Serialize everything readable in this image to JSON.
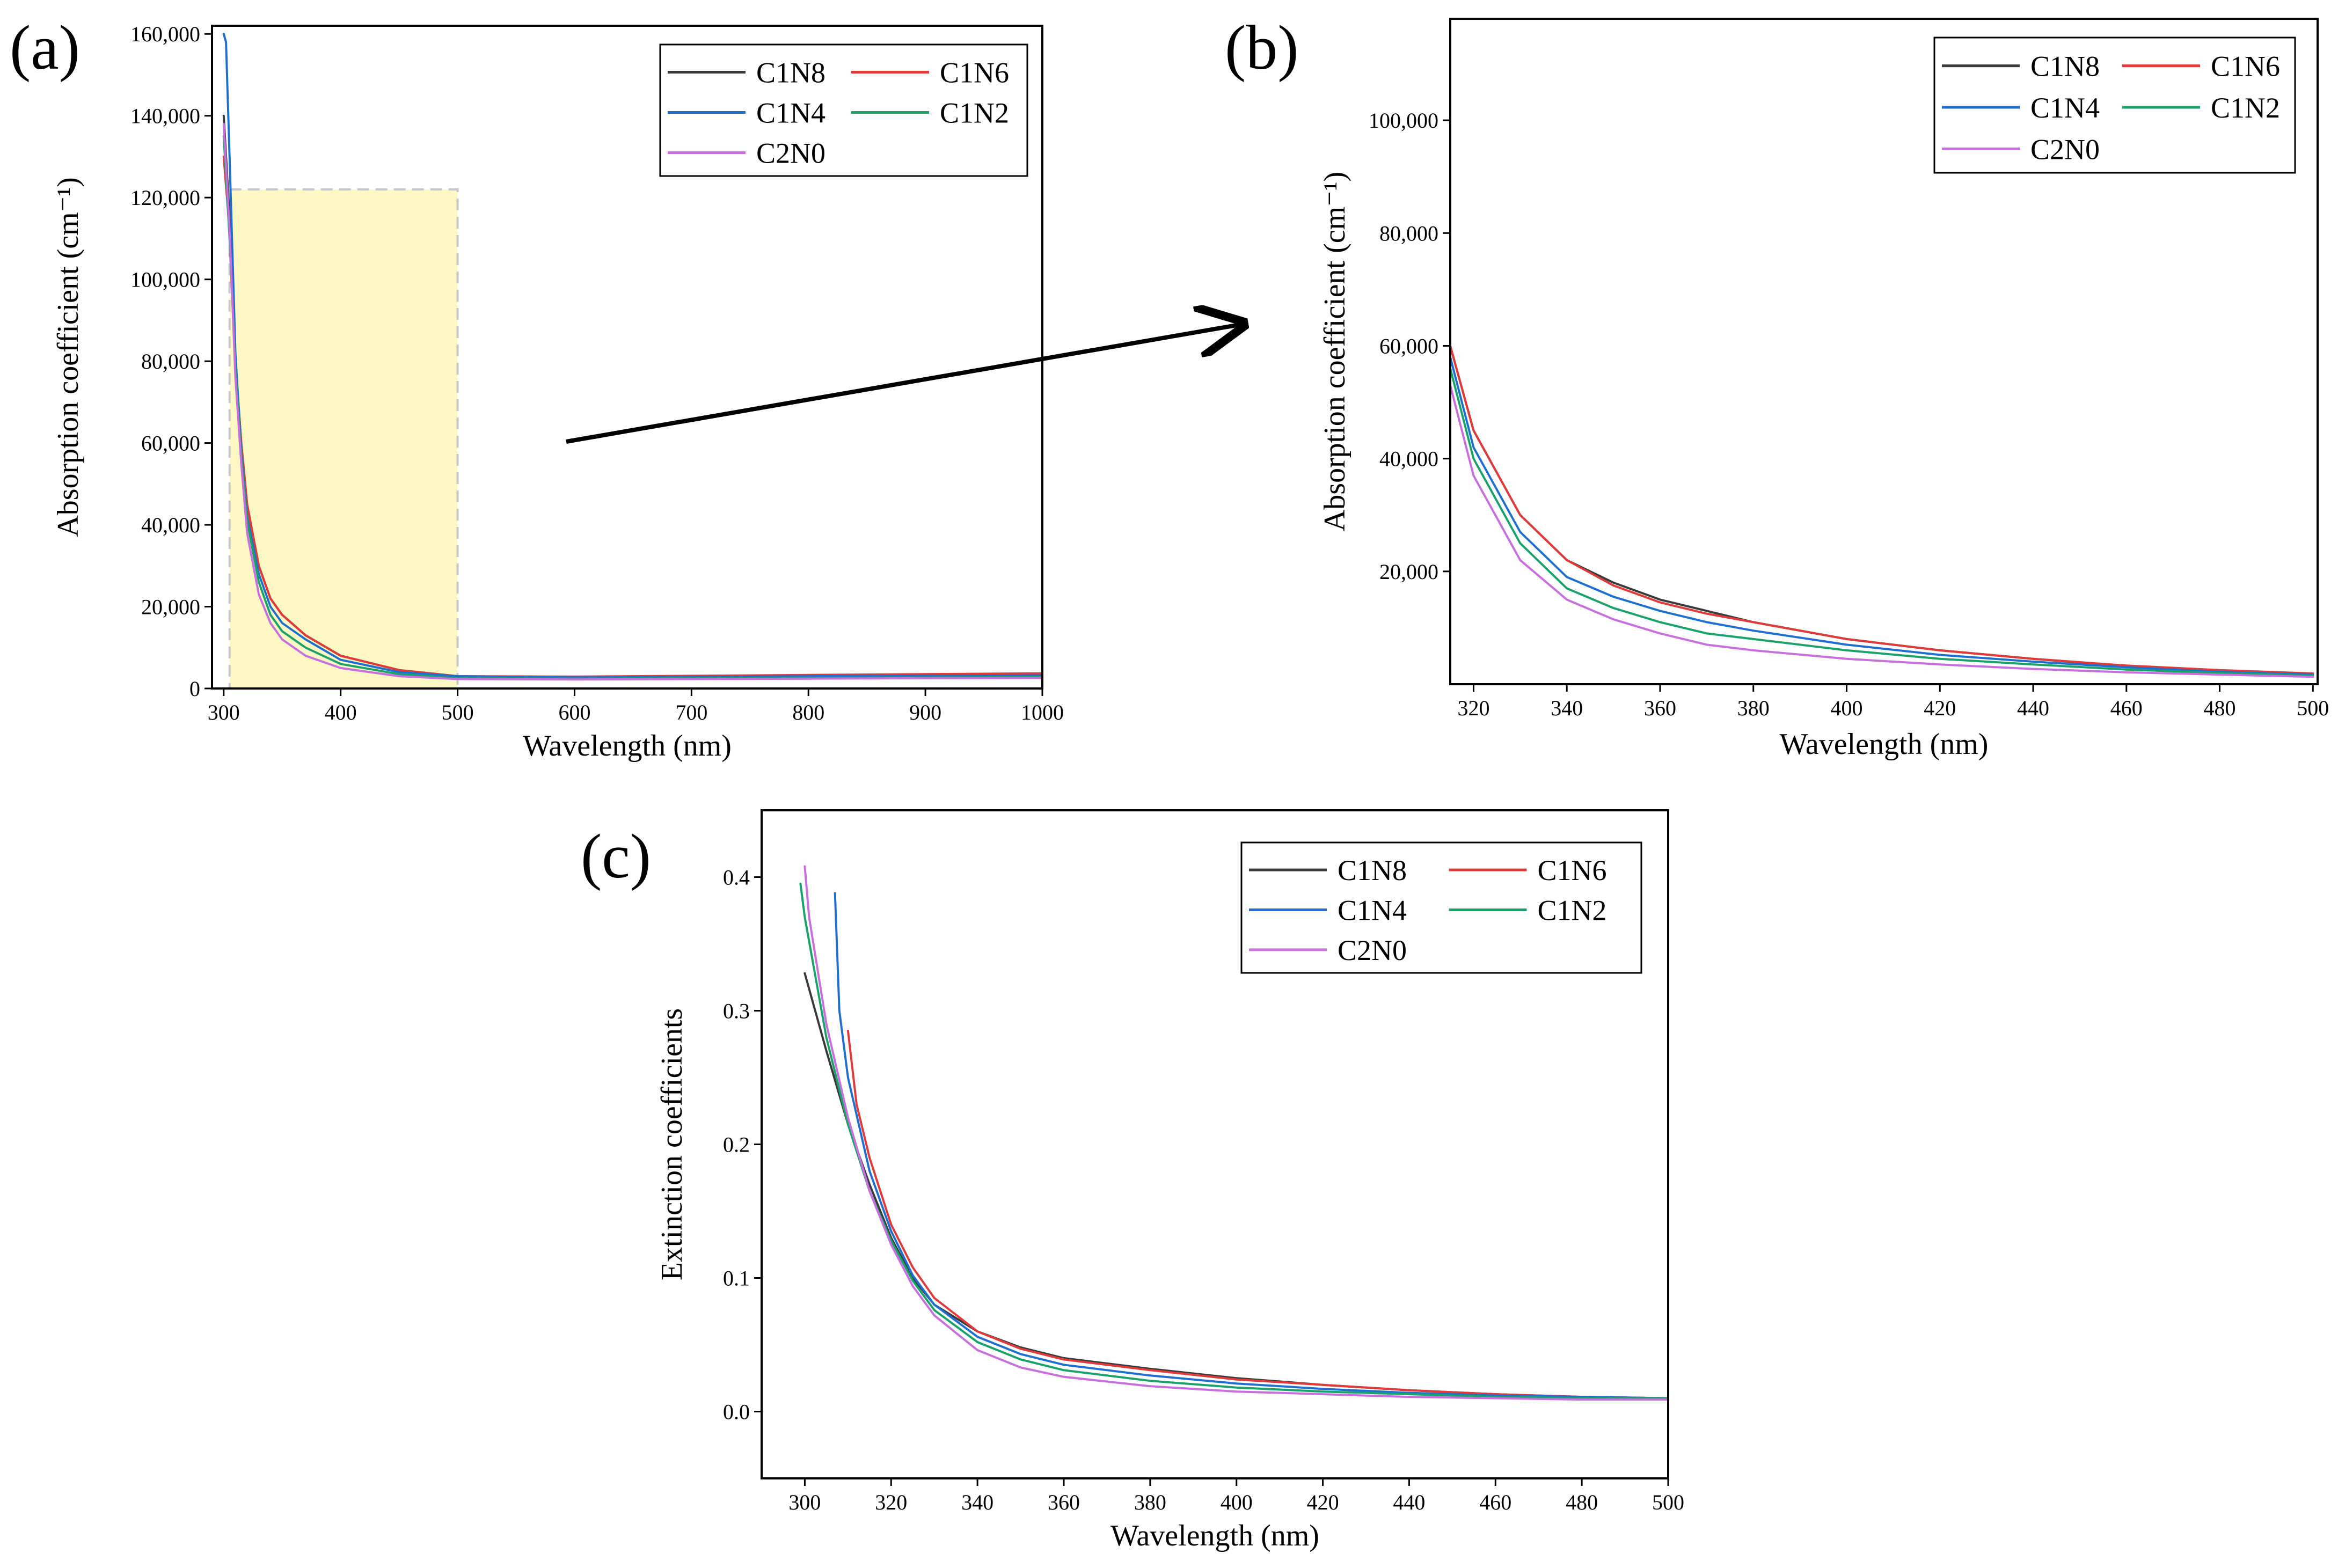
{
  "colors": {
    "C1N8": "#3a3a3a",
    "C1N6": "#e03a3a",
    "C1N4": "#1f6fd1",
    "C1N2": "#1aa26b",
    "C2N0": "#c86fe0",
    "highlight_fill": "#fdf7b8",
    "highlight_stroke": "#c8c8c8"
  },
  "chart_data": [
    {
      "id": "a",
      "panel_label": "(a)",
      "type": "line",
      "title": "",
      "xlabel": "Wavelength (nm)",
      "ylabel": "Absorption coefficient (cm⁻¹)",
      "xlim": [
        290,
        1000
      ],
      "ylim": [
        0,
        162000
      ],
      "xticks": [
        300,
        400,
        500,
        600,
        700,
        800,
        900,
        1000
      ],
      "xtick_labels": [
        "300",
        "400",
        "500",
        "600",
        "700",
        "800",
        "900",
        "1000"
      ],
      "yticks": [
        0,
        20000,
        40000,
        60000,
        80000,
        100000,
        120000,
        140000,
        160000
      ],
      "ytick_labels": [
        "0",
        "20,000",
        "40,000",
        "60,000",
        "80,000",
        "100,000",
        "120,000",
        "140,000",
        "160,000"
      ],
      "highlight": {
        "x": [
          305,
          500
        ],
        "y": [
          0,
          122000
        ],
        "annotation": "zoom region shown in (b)"
      },
      "legend": {
        "position": "top-right",
        "entries": [
          "C1N8",
          "C1N6",
          "C1N4",
          "C1N2",
          "C2N0"
        ]
      },
      "series": [
        {
          "name": "C1N8",
          "x": [
            300,
            305,
            310,
            315,
            320,
            330,
            340,
            350,
            370,
            400,
            450,
            500,
            600,
            700,
            800,
            900,
            1000
          ],
          "y": [
            140000,
            115000,
            80000,
            60000,
            45000,
            30000,
            22000,
            18000,
            13000,
            8000,
            4500,
            3000,
            2800,
            2800,
            3000,
            3200,
            3400
          ]
        },
        {
          "name": "C1N6",
          "x": [
            300,
            305,
            310,
            315,
            320,
            330,
            340,
            350,
            370,
            400,
            450,
            500,
            600,
            700,
            800,
            900,
            1000
          ],
          "y": [
            130000,
            112000,
            80000,
            60000,
            45000,
            30000,
            22000,
            18000,
            13000,
            8000,
            4500,
            3000,
            2900,
            3100,
            3300,
            3500,
            3700
          ]
        },
        {
          "name": "C1N4",
          "x": [
            300,
            302,
            305,
            310,
            315,
            320,
            330,
            340,
            350,
            370,
            400,
            450,
            500,
            600,
            700,
            800,
            900,
            1000
          ],
          "y": [
            160000,
            158000,
            130000,
            82000,
            58000,
            42000,
            28000,
            20000,
            16000,
            12000,
            7000,
            4000,
            3000,
            2700,
            2800,
            3000,
            3100,
            3200
          ]
        },
        {
          "name": "C1N2",
          "x": [
            300,
            305,
            310,
            315,
            320,
            330,
            340,
            350,
            370,
            400,
            450,
            500,
            600,
            700,
            800,
            900,
            1000
          ],
          "y": [
            135000,
            110000,
            78000,
            57000,
            41000,
            26000,
            18000,
            14000,
            10000,
            6000,
            3500,
            2500,
            2400,
            2500,
            2600,
            2700,
            2800
          ]
        },
        {
          "name": "C2N0",
          "x": [
            300,
            305,
            310,
            315,
            320,
            330,
            340,
            350,
            370,
            400,
            450,
            500,
            600,
            700,
            800,
            900,
            1000
          ],
          "y": [
            138000,
            112000,
            76000,
            55000,
            38000,
            23000,
            16000,
            12000,
            8000,
            5000,
            3000,
            2300,
            2200,
            2300,
            2400,
            2500,
            2600
          ]
        }
      ]
    },
    {
      "id": "b",
      "panel_label": "(b)",
      "type": "line",
      "title": "",
      "xlabel": "Wavelength (nm)",
      "ylabel": "Absorption coefficient (cm⁻¹)",
      "xlim": [
        315,
        501
      ],
      "ylim": [
        0,
        118000
      ],
      "xticks": [
        320,
        340,
        360,
        380,
        400,
        420,
        440,
        460,
        480,
        500
      ],
      "xtick_labels": [
        "320",
        "340",
        "360",
        "380",
        "400",
        "420",
        "440",
        "460",
        "480",
        "500"
      ],
      "yticks": [
        20000,
        40000,
        60000,
        80000,
        100000
      ],
      "ytick_labels": [
        "20,000",
        "40,000",
        "60,000",
        "80,000",
        "100,000"
      ],
      "legend": {
        "position": "top-right",
        "entries": [
          "C1N8",
          "C1N6",
          "C1N4",
          "C1N2",
          "C2N0"
        ]
      },
      "series": [
        {
          "name": "C1N8",
          "x": [
            315,
            320,
            330,
            340,
            350,
            360,
            370,
            380,
            400,
            420,
            440,
            460,
            480,
            500
          ],
          "y": [
            60000,
            45000,
            30000,
            22000,
            18000,
            15000,
            13000,
            11000,
            8000,
            6000,
            4500,
            3200,
            2400,
            1800
          ]
        },
        {
          "name": "C1N6",
          "x": [
            315,
            320,
            330,
            340,
            350,
            360,
            370,
            380,
            400,
            420,
            440,
            460,
            480,
            500
          ],
          "y": [
            60000,
            45000,
            30000,
            22000,
            17500,
            14500,
            12500,
            11000,
            8000,
            6000,
            4500,
            3300,
            2500,
            1900
          ]
        },
        {
          "name": "C1N4",
          "x": [
            315,
            320,
            330,
            340,
            350,
            360,
            370,
            380,
            400,
            420,
            440,
            460,
            480,
            500
          ],
          "y": [
            58000,
            42000,
            27000,
            19000,
            15500,
            13000,
            11000,
            9500,
            7000,
            5200,
            4000,
            3000,
            2200,
            1700
          ]
        },
        {
          "name": "C1N2",
          "x": [
            315,
            320,
            330,
            340,
            350,
            360,
            370,
            380,
            400,
            420,
            440,
            460,
            480,
            500
          ],
          "y": [
            56000,
            40000,
            25000,
            17000,
            13500,
            11000,
            9000,
            8000,
            6000,
            4500,
            3500,
            2600,
            2000,
            1500
          ]
        },
        {
          "name": "C2N0",
          "x": [
            315,
            320,
            330,
            340,
            350,
            360,
            370,
            380,
            400,
            420,
            440,
            460,
            480,
            500
          ],
          "y": [
            53000,
            37000,
            22000,
            15000,
            11500,
            9000,
            7000,
            6000,
            4500,
            3500,
            2700,
            2100,
            1700,
            1300
          ]
        }
      ]
    },
    {
      "id": "c",
      "panel_label": "(c)",
      "type": "line",
      "title": "",
      "xlabel": "Wavelength (nm)",
      "ylabel": "Extinction coefficients",
      "xlim": [
        290,
        500
      ],
      "ylim": [
        -0.05,
        0.45
      ],
      "xticks": [
        300,
        320,
        340,
        360,
        380,
        400,
        420,
        440,
        460,
        480,
        500
      ],
      "xtick_labels": [
        "300",
        "320",
        "340",
        "360",
        "380",
        "400",
        "420",
        "440",
        "460",
        "480",
        "500"
      ],
      "yticks": [
        0.0,
        0.1,
        0.2,
        0.3,
        0.4
      ],
      "ytick_labels": [
        "0.0",
        "0.1",
        "0.2",
        "0.3",
        "0.4"
      ],
      "legend": {
        "position": "top-right",
        "entries": [
          "C1N8",
          "C1N6",
          "C1N4",
          "C1N2",
          "C2N0"
        ]
      },
      "series": [
        {
          "name": "C1N8",
          "x": [
            300,
            305,
            310,
            315,
            320,
            325,
            330,
            340,
            350,
            360,
            380,
            400,
            420,
            440,
            460,
            480,
            500
          ],
          "y": [
            0.328,
            0.27,
            0.215,
            0.17,
            0.13,
            0.1,
            0.08,
            0.06,
            0.048,
            0.04,
            0.032,
            0.025,
            0.02,
            0.016,
            0.013,
            0.011,
            0.01
          ]
        },
        {
          "name": "C1N6",
          "x": [
            310,
            312,
            315,
            320,
            325,
            330,
            340,
            350,
            360,
            380,
            400,
            420,
            440,
            460,
            480,
            500
          ],
          "y": [
            0.285,
            0.23,
            0.19,
            0.14,
            0.108,
            0.085,
            0.06,
            0.047,
            0.039,
            0.031,
            0.024,
            0.02,
            0.016,
            0.013,
            0.011,
            0.01
          ]
        },
        {
          "name": "C1N4",
          "x": [
            307,
            308,
            310,
            315,
            320,
            325,
            330,
            340,
            350,
            360,
            380,
            400,
            420,
            440,
            460,
            480,
            500
          ],
          "y": [
            0.388,
            0.3,
            0.25,
            0.18,
            0.135,
            0.102,
            0.08,
            0.056,
            0.043,
            0.035,
            0.027,
            0.021,
            0.017,
            0.014,
            0.012,
            0.011,
            0.01
          ]
        },
        {
          "name": "C1N2",
          "x": [
            299,
            300,
            305,
            310,
            315,
            320,
            325,
            330,
            340,
            350,
            360,
            380,
            400,
            420,
            440,
            460,
            480,
            500
          ],
          "y": [
            0.395,
            0.37,
            0.28,
            0.215,
            0.165,
            0.128,
            0.098,
            0.076,
            0.052,
            0.039,
            0.031,
            0.023,
            0.018,
            0.015,
            0.013,
            0.011,
            0.01,
            0.01
          ]
        },
        {
          "name": "C2N0",
          "x": [
            300,
            301,
            305,
            310,
            315,
            320,
            325,
            330,
            340,
            350,
            360,
            380,
            400,
            420,
            440,
            460,
            480,
            500
          ],
          "y": [
            0.408,
            0.37,
            0.29,
            0.22,
            0.165,
            0.125,
            0.094,
            0.072,
            0.046,
            0.033,
            0.026,
            0.019,
            0.015,
            0.013,
            0.011,
            0.01,
            0.009,
            0.009
          ]
        }
      ]
    }
  ]
}
